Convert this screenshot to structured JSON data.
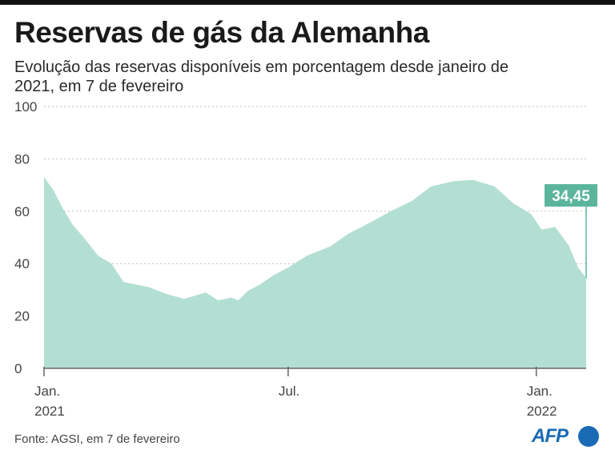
{
  "title": "Reservas de gás da Alemanha",
  "subtitle": "Evolução das reservas disponíveis em porcentagem desde janeiro de 2021, em 7 de fevereiro",
  "source": "Fonte: AGSI, em 7 de fevereiro",
  "logo": "AFP",
  "colors": {
    "area": "#b3dfd3",
    "accent": "#5bb59c",
    "grid": "#bbbbbb",
    "axis": "#666666"
  },
  "chart_data": {
    "type": "area",
    "xlabel": "",
    "ylabel": "",
    "ylim": [
      0,
      100
    ],
    "yticks": [
      "0",
      "20",
      "40",
      "60",
      "80",
      "100"
    ],
    "xticks": [
      {
        "date": "2021-01-01",
        "lines": [
          "Jan.",
          "2021"
        ]
      },
      {
        "date": "2021-07-01",
        "lines": [
          "Jul.",
          ""
        ]
      },
      {
        "date": "2022-01-01",
        "lines": [
          "Jan.",
          "2022"
        ]
      }
    ],
    "x": [
      "2021-01-01",
      "2021-01-08",
      "2021-01-15",
      "2021-01-22",
      "2021-02-01",
      "2021-02-10",
      "2021-02-20",
      "2021-03-01",
      "2021-03-10",
      "2021-03-20",
      "2021-04-01",
      "2021-04-15",
      "2021-05-01",
      "2021-05-10",
      "2021-05-20",
      "2021-05-25",
      "2021-06-01",
      "2021-06-10",
      "2021-06-20",
      "2021-07-01",
      "2021-07-15",
      "2021-08-01",
      "2021-08-15",
      "2021-09-01",
      "2021-09-15",
      "2021-10-01",
      "2021-10-15",
      "2021-11-01",
      "2021-11-15",
      "2021-12-01",
      "2021-12-15",
      "2021-12-28",
      "2022-01-05",
      "2022-01-15",
      "2022-01-25",
      "2022-02-01",
      "2022-02-07"
    ],
    "values": [
      73,
      68,
      61,
      55,
      49,
      43,
      40,
      33,
      32,
      31,
      28.5,
      26.5,
      29,
      26,
      27,
      26,
      29.5,
      32,
      35.5,
      38.5,
      43,
      46.5,
      51.5,
      56,
      60,
      64,
      69.5,
      71.5,
      72,
      69.5,
      63,
      59,
      53,
      54,
      47,
      38.5,
      34.45
    ],
    "annotations": [
      {
        "x": "2022-02-07",
        "label": "34,45"
      }
    ]
  }
}
